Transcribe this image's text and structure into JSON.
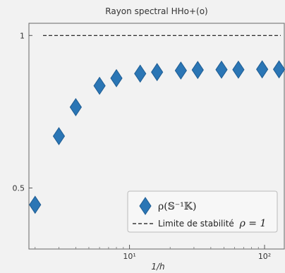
{
  "chart_data": {
    "type": "scatter",
    "title": "Rayon spectral HHo+(o)",
    "xlabel": "1/h",
    "ylabel": "",
    "xscale": "log",
    "xlim": [
      1.8,
      140
    ],
    "ylim": [
      0.3,
      1.04
    ],
    "x_ticks": [
      {
        "value": 10,
        "label": "10¹"
      },
      {
        "value": 100,
        "label": "10²"
      }
    ],
    "y_ticks": [
      {
        "value": 1,
        "label": "1"
      },
      {
        "value": 0.5,
        "label": "0.5"
      }
    ],
    "series": [
      {
        "name": "ρ(𝕊⁻¹𝕂)",
        "marker": "diamond",
        "color": "#2b76b5",
        "x": [
          2,
          3,
          4,
          6,
          8,
          12,
          16,
          24,
          32,
          48,
          64,
          96,
          128
        ],
        "y": [
          0.445,
          0.67,
          0.765,
          0.835,
          0.86,
          0.875,
          0.88,
          0.885,
          0.887,
          0.888,
          0.888,
          0.889,
          0.889
        ]
      }
    ],
    "reference_line": {
      "name": "Limite de stabilité",
      "condition": "ρ = 1",
      "y": 1,
      "style": "dashed",
      "color": "#111111"
    },
    "legend_position": "bottom-right",
    "grid": false
  }
}
